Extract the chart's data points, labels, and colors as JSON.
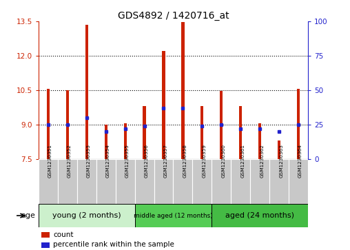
{
  "title": "GDS4892 / 1420716_at",
  "samples": [
    "GSM1230351",
    "GSM1230352",
    "GSM1230353",
    "GSM1230354",
    "GSM1230355",
    "GSM1230356",
    "GSM1230357",
    "GSM1230358",
    "GSM1230359",
    "GSM1230360",
    "GSM1230361",
    "GSM1230362",
    "GSM1230363",
    "GSM1230364"
  ],
  "count_values": [
    10.55,
    10.48,
    13.35,
    9.0,
    9.05,
    9.8,
    12.2,
    13.47,
    9.8,
    10.45,
    9.8,
    9.05,
    8.3,
    10.55
  ],
  "percentile_values": [
    25.0,
    25.0,
    30.0,
    20.0,
    22.0,
    24.0,
    37.0,
    37.0,
    24.0,
    25.0,
    22.0,
    22.0,
    20.0,
    25.0
  ],
  "ymin": 7.5,
  "ymax": 13.5,
  "y_ticks": [
    7.5,
    9.0,
    10.5,
    12.0,
    13.5
  ],
  "y_right_ticks": [
    0,
    25,
    50,
    75,
    100
  ],
  "dotted_lines": [
    9.0,
    10.5,
    12.0
  ],
  "groups": [
    {
      "label": "young (2 months)",
      "start": 0,
      "end": 4,
      "color": "#ccf0cc"
    },
    {
      "label": "middle aged (12 months)",
      "start": 5,
      "end": 8,
      "color": "#55cc55"
    },
    {
      "label": "aged (24 months)",
      "start": 9,
      "end": 13,
      "color": "#44bb44"
    }
  ],
  "bar_color": "#cc2200",
  "percentile_color": "#2222cc",
  "bar_bottom": 7.5,
  "bar_width": 0.15,
  "left_axis_color": "#cc2200",
  "right_axis_color": "#2222cc",
  "legend_count_label": "count",
  "legend_percentile_label": "percentile rank within the sample",
  "age_label": "age"
}
